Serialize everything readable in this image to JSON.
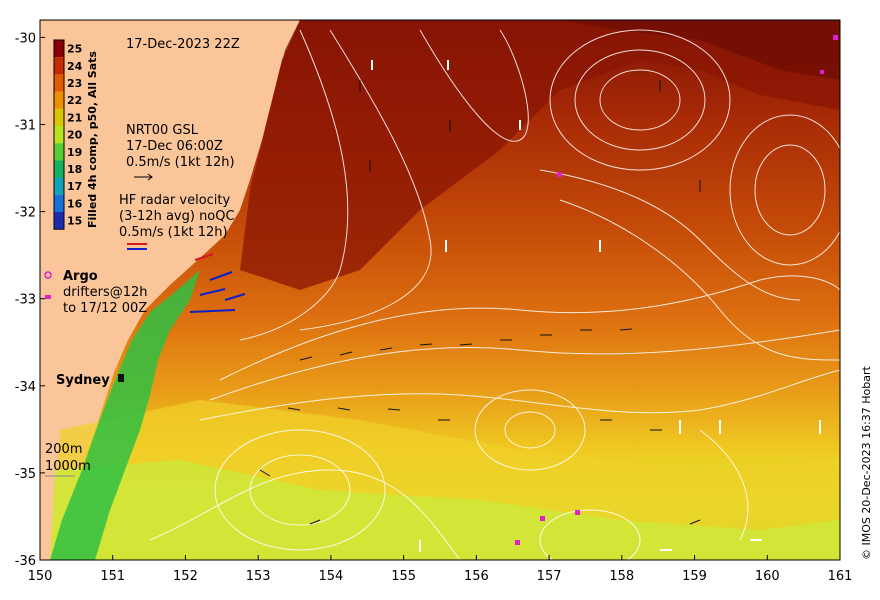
{
  "map": {
    "x_ticks": [
      "150",
      "151",
      "152",
      "153",
      "154",
      "155",
      "156",
      "157",
      "158",
      "159",
      "160",
      "161"
    ],
    "y_ticks": [
      "-30",
      "-31",
      "-32",
      "-33",
      "-34",
      "-35",
      "-36"
    ],
    "lon_range": [
      150,
      161
    ],
    "lat_range": [
      -36,
      -29.8
    ],
    "timestamp": "17-Dec-2023 22Z",
    "colorbar": {
      "title": "Filled 4h comp, p50, All Sats",
      "values": [
        "25",
        "24",
        "23",
        "22",
        "21",
        "20",
        "19",
        "18",
        "17",
        "16",
        "15"
      ],
      "colors": [
        "#8b0000",
        "#c62a00",
        "#e05a00",
        "#ee8f00",
        "#d9c400",
        "#b6e51f",
        "#55cf33",
        "#13b05e",
        "#0fa3b8",
        "#1670dc",
        "#1a2bb0"
      ]
    },
    "legend": {
      "gsl_title": "NRT00 GSL",
      "gsl_date": "17-Dec 06:00Z",
      "gsl_scale": "0.5m/s (1kt 12h)",
      "radar_line1": "HF radar velocity",
      "radar_line2": "(3-12h avg) noQC",
      "radar_scale": "0.5m/s (1kt 12h)",
      "argo": "Argo",
      "drifters_line1": "drifters@12h",
      "drifters_line2": "to 17/12 00Z",
      "sydney": "Sydney",
      "depth_200": "200m",
      "depth_1000": "1000m"
    },
    "credit": "© IMOS 20-Dec-2023 16:37 Hobart",
    "palette": {
      "land": "#fbc59a",
      "sst_warm": "#b83a06",
      "sst_hot": "#8f1a05",
      "sst_mid": "#dd6f10",
      "sst_cool": "#efc21e",
      "sst_cold": "#c9e52e",
      "coastal": "#2fbf43",
      "contour": "#ffffff",
      "radar_red": "#d6181f",
      "radar_blue": "#1020c8",
      "argo_magenta": "#e020d0"
    }
  }
}
